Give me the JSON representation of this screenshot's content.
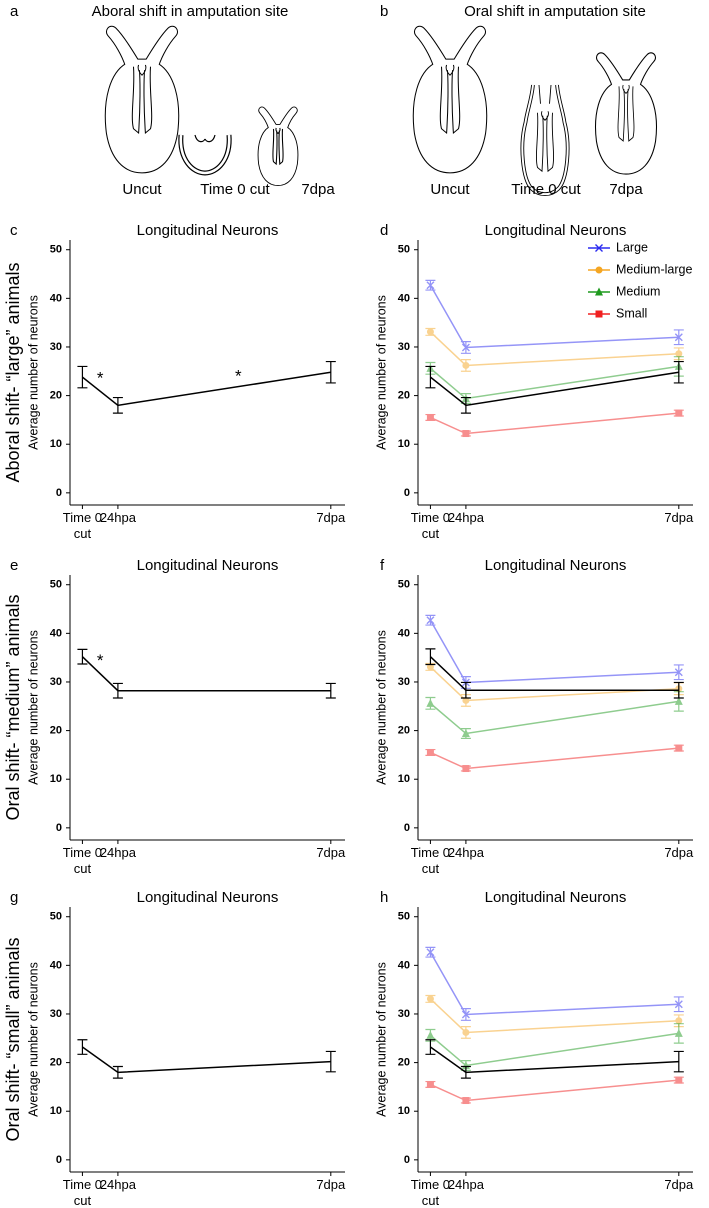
{
  "figure": {
    "panels": [
      {
        "label": "a",
        "title": "Aboral shift in amputation site",
        "stages": [
          "Uncut",
          "Time 0 cut",
          "7dpa"
        ]
      },
      {
        "label": "b",
        "title": "Oral shift in amputation site",
        "stages": [
          "Uncut",
          "Time 0 cut",
          "7dpa"
        ]
      }
    ],
    "row_labels": [
      "Aboral shift- “large” animals",
      "Oral shift- “medium” animals",
      "Oral shift- “small” animals"
    ]
  },
  "chart_data": [
    {
      "type": "line",
      "panel": "c",
      "title": "Longitudinal Neurons",
      "ylabel": "Average number of neurons",
      "x": [
        0,
        1,
        7
      ],
      "xlim": [
        -0.35,
        7.4
      ],
      "xticks": [
        {
          "value": 0,
          "label": "Time 0\ncut"
        },
        {
          "value": 1,
          "label": "24hpa"
        },
        {
          "value": 7,
          "label": "7dpa"
        }
      ],
      "ylim": [
        -2.5,
        52
      ],
      "yticks": [
        0,
        10,
        20,
        30,
        40,
        50
      ],
      "series": [
        {
          "color": "#000000",
          "values": [
            23.8,
            18,
            24.8
          ],
          "errors": [
            2.2,
            1.6,
            2.2
          ]
        }
      ],
      "annotations": [
        "*",
        "*"
      ]
    },
    {
      "type": "line",
      "panel": "d",
      "title": "Longitudinal Neurons",
      "ylabel": "Average number of neurons",
      "x": [
        0,
        1,
        7
      ],
      "xlim": [
        -0.35,
        7.4
      ],
      "xticks": [
        {
          "value": 0,
          "label": "Time 0\ncut"
        },
        {
          "value": 1,
          "label": "24hpa"
        },
        {
          "value": 7,
          "label": "7dpa"
        }
      ],
      "ylim": [
        -2.5,
        52
      ],
      "yticks": [
        0,
        10,
        20,
        30,
        40,
        50
      ],
      "legend": "top-right",
      "series": [
        {
          "name": "Large",
          "color": "#2b2bf0",
          "marker": "x",
          "values": [
            42.7,
            29.9,
            32
          ],
          "errors": [
            1,
            1.2,
            1.5
          ]
        },
        {
          "name": "Medium-large",
          "color": "#f5a623",
          "marker": "circle",
          "values": [
            33.1,
            26.2,
            28.6
          ],
          "errors": [
            0.7,
            1.2,
            1.2
          ]
        },
        {
          "name": "Medium",
          "color": "#1f9a1f",
          "marker": "triangle",
          "values": [
            25.6,
            19.4,
            26
          ],
          "errors": [
            1.2,
            1,
            2
          ]
        },
        {
          "name": "Small",
          "color": "#f02020",
          "marker": "square",
          "values": [
            15.5,
            12.2,
            16.4
          ],
          "errors": [
            0.6,
            0.5,
            0.6
          ]
        },
        {
          "color": "#000000",
          "values": [
            23.8,
            18,
            24.8
          ],
          "errors": [
            2.2,
            1.6,
            2.2
          ]
        }
      ]
    },
    {
      "type": "line",
      "panel": "e",
      "title": "Longitudinal Neurons",
      "ylabel": "Average number of neurons",
      "x": [
        0,
        1,
        7
      ],
      "xlim": [
        -0.35,
        7.4
      ],
      "xticks": [
        {
          "value": 0,
          "label": "Time 0\ncut"
        },
        {
          "value": 1,
          "label": "24hpa"
        },
        {
          "value": 7,
          "label": "7dpa"
        }
      ],
      "ylim": [
        -2.5,
        52
      ],
      "yticks": [
        0,
        10,
        20,
        30,
        40,
        50
      ],
      "series": [
        {
          "color": "#000000",
          "values": [
            35.2,
            28.2,
            28.2
          ],
          "errors": [
            1.5,
            1.5,
            1.5
          ]
        }
      ],
      "annotations": [
        "*"
      ]
    },
    {
      "type": "line",
      "panel": "f",
      "title": "Longitudinal Neurons",
      "ylabel": "Average number of neurons",
      "x": [
        0,
        1,
        7
      ],
      "xlim": [
        -0.35,
        7.4
      ],
      "xticks": [
        {
          "value": 0,
          "label": "Time 0\ncut"
        },
        {
          "value": 1,
          "label": "24hpa"
        },
        {
          "value": 7,
          "label": "7dpa"
        }
      ],
      "ylim": [
        -2.5,
        52
      ],
      "yticks": [
        0,
        10,
        20,
        30,
        40,
        50
      ],
      "series": [
        {
          "color": "#2b2bf0",
          "marker": "x",
          "values": [
            42.7,
            29.9,
            32
          ],
          "errors": [
            1,
            1.2,
            1.5
          ]
        },
        {
          "color": "#f5a623",
          "marker": "circle",
          "values": [
            33.1,
            26.2,
            28.6
          ],
          "errors": [
            0.7,
            1.2,
            1.2
          ]
        },
        {
          "color": "#1f9a1f",
          "marker": "triangle",
          "values": [
            25.6,
            19.4,
            26
          ],
          "errors": [
            1.2,
            1,
            2
          ]
        },
        {
          "color": "#f02020",
          "marker": "square",
          "values": [
            15.5,
            12.2,
            16.4
          ],
          "errors": [
            0.6,
            0.5,
            0.6
          ]
        },
        {
          "color": "#000000",
          "values": [
            35.2,
            28.3,
            28.3
          ],
          "errors": [
            1.6,
            1.6,
            1.6
          ]
        }
      ]
    },
    {
      "type": "line",
      "panel": "g",
      "title": "Longitudinal Neurons",
      "ylabel": "Average number of neurons",
      "x": [
        0,
        1,
        7
      ],
      "xlim": [
        -0.35,
        7.4
      ],
      "xticks": [
        {
          "value": 0,
          "label": "Time 0\ncut"
        },
        {
          "value": 1,
          "label": "24hpa"
        },
        {
          "value": 7,
          "label": "7dpa"
        }
      ],
      "ylim": [
        -2.5,
        52
      ],
      "yticks": [
        0,
        10,
        20,
        30,
        40,
        50
      ],
      "series": [
        {
          "color": "#000000",
          "values": [
            23.2,
            18,
            20.2
          ],
          "errors": [
            1.5,
            1.2,
            2.1
          ]
        }
      ]
    },
    {
      "type": "line",
      "panel": "h",
      "title": "Longitudinal Neurons",
      "ylabel": "Average number of neurons",
      "x": [
        0,
        1,
        7
      ],
      "xlim": [
        -0.35,
        7.4
      ],
      "xticks": [
        {
          "value": 0,
          "label": "Time 0\ncut"
        },
        {
          "value": 1,
          "label": "24hpa"
        },
        {
          "value": 7,
          "label": "7dpa"
        }
      ],
      "ylim": [
        -2.5,
        52
      ],
      "yticks": [
        0,
        10,
        20,
        30,
        40,
        50
      ],
      "series": [
        {
          "color": "#2b2bf0",
          "marker": "x",
          "values": [
            42.7,
            29.9,
            32
          ],
          "errors": [
            1,
            1.2,
            1.5
          ]
        },
        {
          "color": "#f5a623",
          "marker": "circle",
          "values": [
            33.1,
            26.2,
            28.6
          ],
          "errors": [
            0.7,
            1.2,
            1.2
          ]
        },
        {
          "color": "#1f9a1f",
          "marker": "triangle",
          "values": [
            25.6,
            19.4,
            26
          ],
          "errors": [
            1.2,
            1,
            2
          ]
        },
        {
          "color": "#f02020",
          "marker": "square",
          "values": [
            15.5,
            12.2,
            16.4
          ],
          "errors": [
            0.6,
            0.5,
            0.6
          ]
        },
        {
          "color": "#000000",
          "values": [
            23.2,
            18,
            20.2
          ],
          "errors": [
            1.5,
            1.2,
            2.1
          ]
        }
      ]
    }
  ]
}
